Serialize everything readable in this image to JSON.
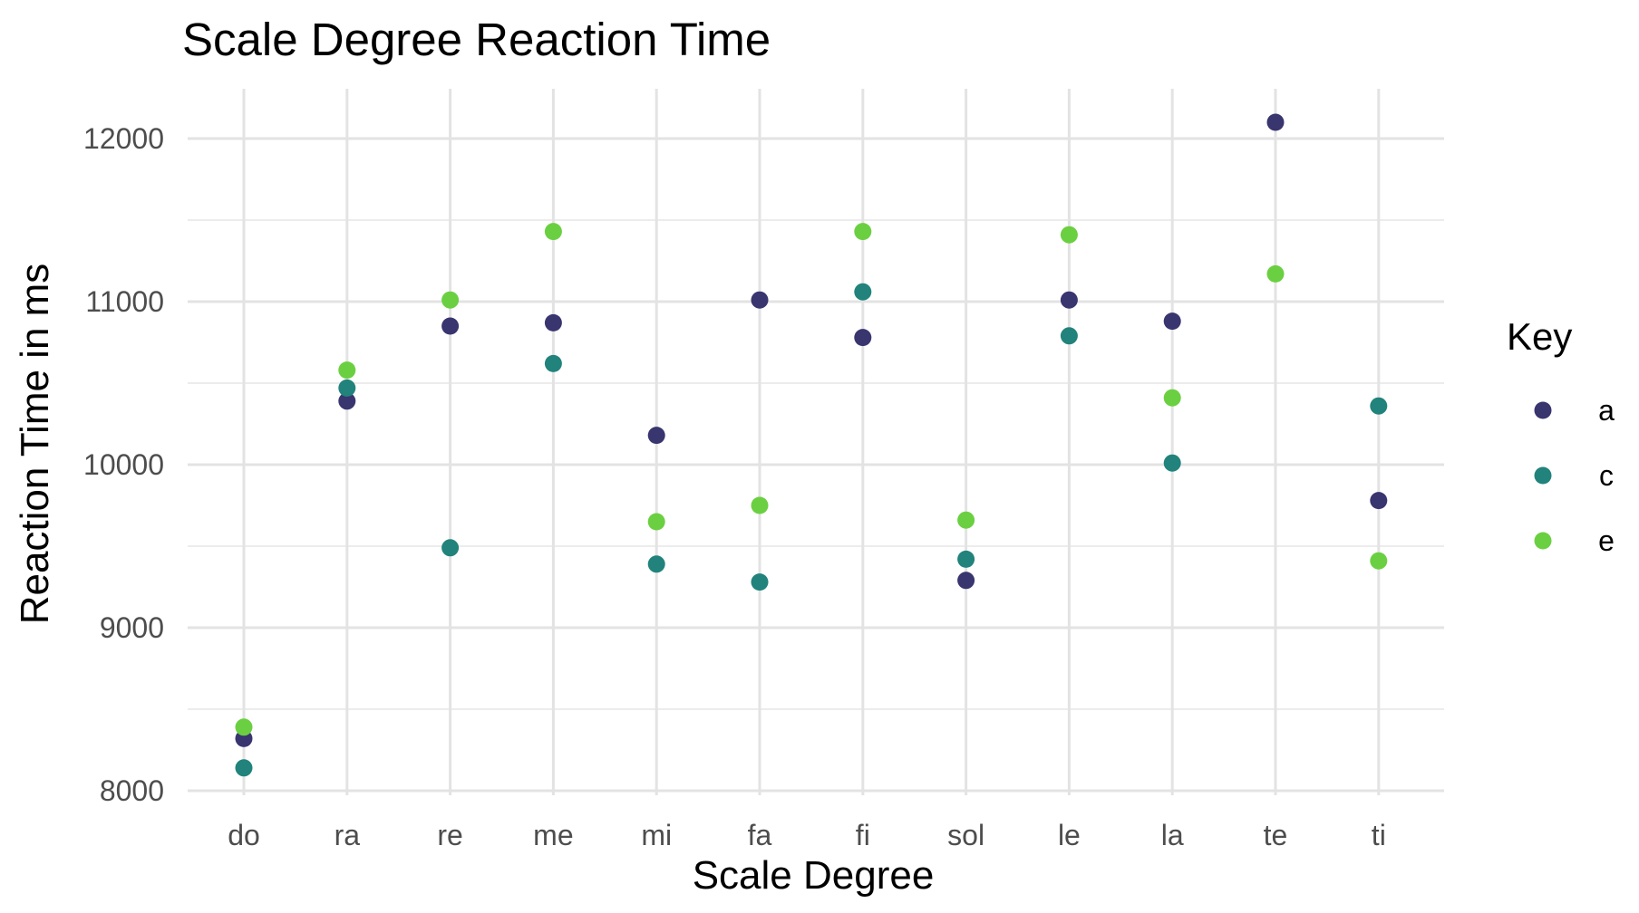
{
  "chart_data": {
    "type": "scatter",
    "title": "Scale Degree Reaction Time",
    "xlabel": "Scale Degree",
    "ylabel": "Reaction Time in ms",
    "categories": [
      "do",
      "ra",
      "re",
      "me",
      "mi",
      "fa",
      "fi",
      "sol",
      "le",
      "la",
      "te",
      "ti"
    ],
    "yticks": [
      8000,
      9000,
      10000,
      11000,
      12000
    ],
    "ylim": [
      7950,
      12300
    ],
    "grid": true,
    "legend": {
      "title": "Key",
      "position": "right"
    },
    "series": [
      {
        "name": "a",
        "color": "#39356f",
        "values": [
          8320,
          10390,
          10850,
          10870,
          10180,
          11010,
          10780,
          9290,
          11010,
          10880,
          12100,
          9780
        ]
      },
      {
        "name": "c",
        "color": "#21837c",
        "values": [
          8140,
          10470,
          9490,
          10620,
          9390,
          9280,
          11060,
          9420,
          10790,
          10010,
          null,
          10360
        ]
      },
      {
        "name": "e",
        "color": "#6bd041",
        "values": [
          8390,
          10580,
          11010,
          11430,
          9650,
          9750,
          11430,
          9660,
          11410,
          10410,
          11170,
          9410
        ]
      }
    ]
  }
}
